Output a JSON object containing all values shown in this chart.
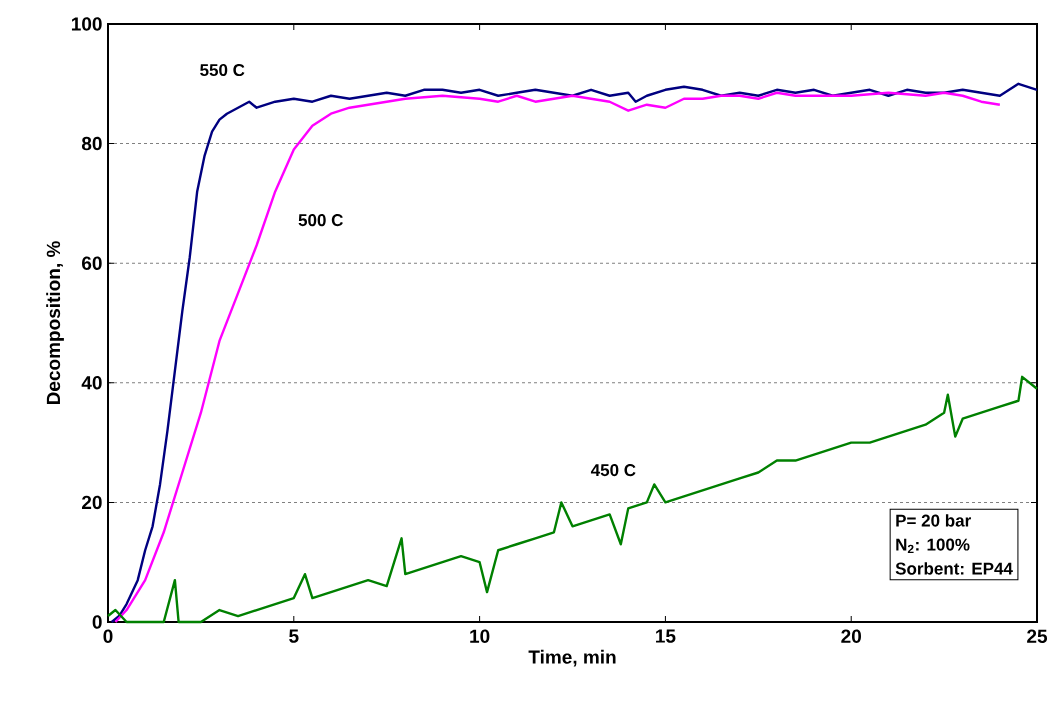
{
  "chart_data": {
    "type": "line",
    "xlabel": "Time, min",
    "ylabel": "Decomposition, %",
    "xlim": [
      0,
      25
    ],
    "ylim": [
      0,
      100
    ],
    "xticks": [
      0,
      5,
      10,
      15,
      20,
      25
    ],
    "yticks": [
      0,
      20,
      40,
      60,
      80,
      100
    ],
    "grid": "y",
    "marker": "none",
    "line_style": "solid",
    "series": [
      {
        "name": "550 C",
        "color": "#000080",
        "x": [
          0.1,
          0.3,
          0.5,
          0.8,
          1.0,
          1.2,
          1.4,
          1.6,
          1.8,
          2.0,
          2.2,
          2.4,
          2.6,
          2.8,
          3.0,
          3.2,
          3.5,
          3.8,
          4.0,
          4.5,
          5,
          5.5,
          6,
          6.5,
          7,
          7.5,
          8,
          8.5,
          9,
          9.5,
          10,
          10.5,
          11,
          11.5,
          12,
          12.5,
          13,
          13.5,
          14,
          14.2,
          14.5,
          15,
          15.5,
          16,
          16.5,
          17,
          17.5,
          18,
          18.5,
          19,
          19.5,
          20,
          20.5,
          21,
          21.5,
          22,
          22.5,
          23,
          23.5,
          24,
          24.5,
          25
        ],
        "values": [
          0,
          1,
          3,
          7,
          12,
          16,
          23,
          32,
          42,
          52,
          61,
          72,
          78,
          82,
          84,
          85,
          86,
          87,
          86,
          87,
          87.5,
          87,
          88,
          87.5,
          88,
          88.5,
          88,
          89,
          89,
          88.5,
          89,
          88,
          88.5,
          89,
          88.5,
          88,
          89,
          88,
          88.5,
          87,
          88,
          89,
          89.5,
          89,
          88,
          88.5,
          88,
          89,
          88.5,
          89,
          88,
          88.5,
          89,
          88,
          89,
          88.5,
          88.5,
          89,
          88.5,
          88,
          90,
          89
        ]
      },
      {
        "name": "500 C",
        "color": "#ff00ff",
        "x": [
          0.2,
          0.5,
          1,
          1.5,
          2,
          2.5,
          3,
          3.5,
          4,
          4.5,
          5,
          5.5,
          6,
          6.5,
          7,
          7.5,
          8,
          9,
          10,
          10.5,
          11,
          11.5,
          12,
          12.5,
          13,
          13.5,
          14,
          14.5,
          15,
          15.5,
          16,
          16.5,
          17,
          17.5,
          18,
          18.5,
          19,
          20,
          21,
          22,
          22.5,
          23,
          23.5,
          24
        ],
        "values": [
          0,
          2,
          7,
          15,
          25,
          35,
          47,
          55,
          63,
          72,
          79,
          83,
          85,
          86,
          86.5,
          87,
          87.5,
          88,
          87.5,
          87,
          88,
          87,
          87.5,
          88,
          87.5,
          87,
          85.5,
          86.5,
          86,
          87.5,
          87.5,
          88,
          88,
          87.5,
          88.5,
          88,
          88,
          88,
          88.5,
          88,
          88.5,
          88,
          87,
          86.5
        ]
      },
      {
        "name": "450 C",
        "color": "#008000",
        "x": [
          0,
          0.2,
          0.5,
          1,
          1.5,
          1.8,
          1.9,
          2.5,
          3,
          3.5,
          4,
          4.5,
          5,
          5.3,
          5.5,
          6,
          6.5,
          7,
          7.5,
          7.9,
          8,
          8.5,
          9,
          9.5,
          10,
          10.2,
          10.5,
          11,
          11.5,
          12,
          12.2,
          12.5,
          13,
          13.5,
          13.8,
          14,
          14.5,
          14.7,
          15,
          15.5,
          16,
          16.5,
          17,
          17.5,
          18,
          18.5,
          19,
          19.5,
          20,
          20.5,
          21,
          21.5,
          22,
          22.5,
          22.6,
          22.8,
          23,
          23.5,
          24,
          24.5,
          24.6,
          25
        ],
        "values": [
          1,
          2,
          0,
          0,
          0,
          7,
          0,
          0,
          2,
          1,
          2,
          3,
          4,
          8,
          4,
          5,
          6,
          7,
          6,
          14,
          8,
          9,
          10,
          11,
          10,
          5,
          12,
          13,
          14,
          15,
          20,
          16,
          17,
          18,
          13,
          19,
          20,
          23,
          20,
          21,
          22,
          23,
          24,
          25,
          27,
          27,
          28,
          29,
          30,
          30,
          31,
          32,
          33,
          35,
          38,
          31,
          34,
          35,
          36,
          37,
          41,
          39
        ]
      }
    ],
    "annotations": [
      "P= 20 bar",
      "N$_{2}$: 100%",
      "Sorbent: EP44"
    ]
  }
}
